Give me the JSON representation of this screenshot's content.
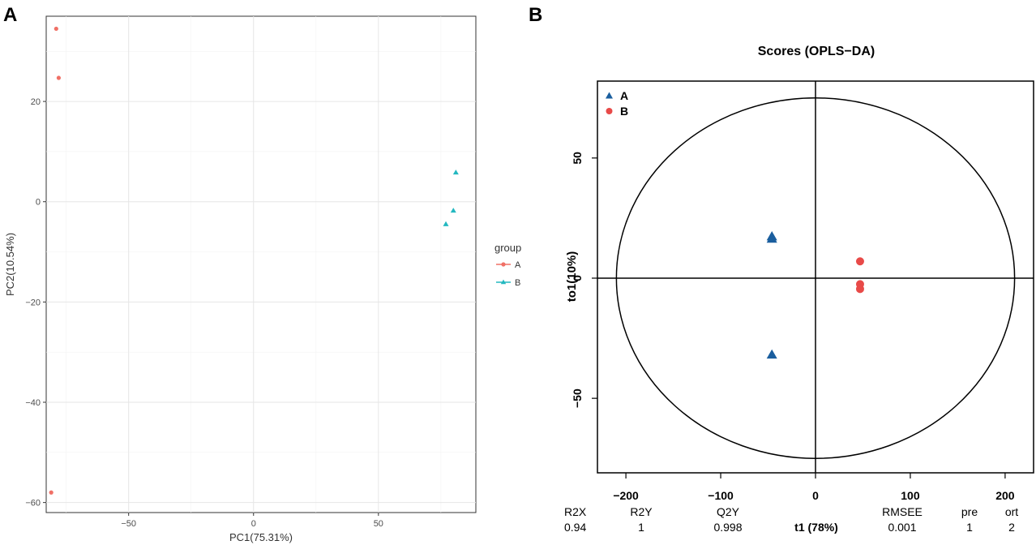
{
  "chart_data": [
    {
      "panel_label": "A",
      "type": "scatter",
      "title": "",
      "xlabel": "PC1(75.31%)",
      "ylabel": "PC2(10.54%)",
      "xlim": [
        -83,
        89
      ],
      "ylim": [
        -62,
        37
      ],
      "xticks": [
        -50,
        0,
        50
      ],
      "xtick_labels": [
        "−50",
        "0",
        "50"
      ],
      "yticks": [
        -60,
        -40,
        -20,
        0,
        20
      ],
      "ytick_labels": [
        "−60",
        "−40",
        "−20",
        "0",
        "20"
      ],
      "grid": true,
      "legend": {
        "title": "group",
        "position": "right",
        "entries": [
          "A",
          "B"
        ]
      },
      "series": [
        {
          "name": "A",
          "marker": "circle",
          "color": "#f07066",
          "x": [
            -79,
            -78,
            -81
          ],
          "y": [
            34.5,
            24.7,
            -58
          ]
        },
        {
          "name": "B",
          "marker": "triangle",
          "color": "#23b8c0",
          "x": [
            81,
            80,
            77
          ],
          "y": [
            5.8,
            -1.8,
            -4.5
          ]
        }
      ]
    },
    {
      "panel_label": "B",
      "type": "scatter",
      "title": "Scores (OPLS−DA)",
      "xlabel": "t1 (78%)",
      "ylabel": "to1(10%)",
      "xlim": [
        -230,
        230
      ],
      "ylim": [
        -81,
        82
      ],
      "xticks": [
        -200,
        -100,
        0,
        100,
        200
      ],
      "xtick_labels": [
        "−200",
        "−100",
        "0",
        "100",
        "200"
      ],
      "yticks": [
        -50,
        0,
        50
      ],
      "ytick_labels": [
        "−50",
        "0",
        "50"
      ],
      "grid": false,
      "ellipse": {
        "rx": 210,
        "ry": 75
      },
      "legend": {
        "position": "top-left",
        "entries": [
          "A",
          "B"
        ]
      },
      "series": [
        {
          "name": "A",
          "marker": "triangle",
          "color": "#1a5e9e",
          "x": [
            -46,
            -46,
            -46
          ],
          "y": [
            17.2,
            16.2,
            -32
          ]
        },
        {
          "name": "B",
          "marker": "circle",
          "color": "#e84a48",
          "x": [
            47,
            47,
            47
          ],
          "y": [
            7,
            -2.5,
            -4.5
          ]
        }
      ],
      "stats": {
        "headers": [
          "R2X",
          "R2Y",
          "Q2Y",
          "RMSEE",
          "pre",
          "ort"
        ],
        "values": [
          "0.94",
          "1",
          "0.998",
          "0.001",
          "1",
          "2"
        ]
      }
    }
  ]
}
